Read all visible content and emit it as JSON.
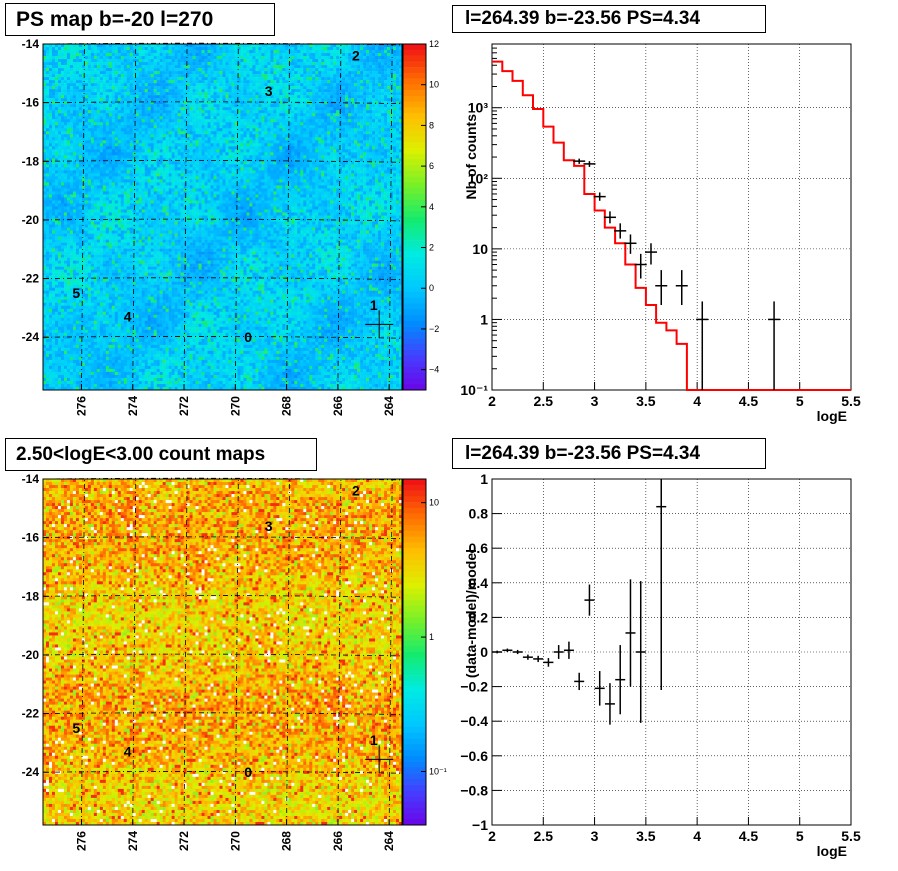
{
  "titles": {
    "ps_map": "PS map b=-20 l=270",
    "spectrum": "l=264.39 b=-23.56 PS=4.34",
    "count_maps": "2.50<logE<3.00 count maps",
    "residuals": "l=264.39 b=-23.56 PS=4.34"
  },
  "colors": {
    "model_line": "#ff0000",
    "data_marker": "#000000",
    "grid": "#000000"
  },
  "chart_data": [
    {
      "type": "heatmap",
      "name": "PS map",
      "x_ticks": [
        "276",
        "274",
        "272",
        "270",
        "268",
        "266",
        "264"
      ],
      "y_ticks": [
        "-14",
        "-16",
        "-18",
        "-20",
        "-22",
        "-24"
      ],
      "xlim": [
        277.5,
        263.5
      ],
      "ylim": [
        -25.8,
        -14
      ],
      "colorbar": {
        "range": [
          -5,
          12
        ],
        "ticks": [
          "12",
          "10",
          "8",
          "6",
          "4",
          "2",
          "0",
          "−2",
          "−4"
        ],
        "tick_values": [
          12,
          10,
          8,
          6,
          4,
          2,
          0,
          -2,
          -4
        ]
      },
      "sources": [
        {
          "label": "0",
          "l": 269.5,
          "b": -24.0
        },
        {
          "label": "1",
          "l": 264.6,
          "b": -22.9
        },
        {
          "label": "2",
          "l": 265.3,
          "b": -14.4
        },
        {
          "label": "3",
          "l": 268.7,
          "b": -15.6
        },
        {
          "label": "4",
          "l": 274.2,
          "b": -23.3
        },
        {
          "label": "5",
          "l": 276.2,
          "b": -22.5
        }
      ],
      "marker": {
        "l": 264.39,
        "b": -23.56
      }
    },
    {
      "type": "line",
      "name": "spectrum",
      "xlabel": "logE",
      "ylabel": "Nb of counts",
      "xlim": [
        2,
        5.5
      ],
      "ylim": [
        0.1,
        8000
      ],
      "yscale": "log",
      "x_ticks": [
        "2",
        "2.5",
        "3",
        "3.5",
        "4",
        "4.5",
        "5",
        "5.5"
      ],
      "y_ticks": [
        "10⁻¹",
        "1",
        "10",
        "10²",
        "10³"
      ],
      "grid": true,
      "model_step": {
        "edges": [
          2.0,
          2.1,
          2.2,
          2.3,
          2.4,
          2.5,
          2.6,
          2.7,
          2.8,
          2.9,
          3.0,
          3.1,
          3.2,
          3.3,
          3.4,
          3.5,
          3.6,
          3.7,
          3.8,
          3.9,
          4.0,
          4.1,
          5.5
        ],
        "values": [
          4500,
          3300,
          2400,
          1500,
          960,
          540,
          320,
          180,
          150,
          60,
          35,
          20,
          12,
          6,
          2.8,
          1.6,
          0.9,
          0.7,
          0.45,
          0.1,
          0.1,
          0.1
        ]
      },
      "data_points": [
        {
          "x": 2.85,
          "y": 175,
          "ylo": 160,
          "yhi": 190
        },
        {
          "x": 2.95,
          "y": 160,
          "ylo": 145,
          "yhi": 175
        },
        {
          "x": 3.05,
          "y": 55,
          "ylo": 48,
          "yhi": 63
        },
        {
          "x": 3.15,
          "y": 28,
          "ylo": 23,
          "yhi": 34
        },
        {
          "x": 3.25,
          "y": 18,
          "ylo": 14,
          "yhi": 23
        },
        {
          "x": 3.35,
          "y": 12,
          "ylo": 8.5,
          "yhi": 16
        },
        {
          "x": 3.45,
          "y": 6,
          "ylo": 3.8,
          "yhi": 8.5
        },
        {
          "x": 3.55,
          "y": 9,
          "ylo": 6,
          "yhi": 12
        },
        {
          "x": 3.65,
          "y": 3,
          "ylo": 1.6,
          "yhi": 5
        },
        {
          "x": 3.85,
          "y": 3,
          "ylo": 1.6,
          "yhi": 5
        },
        {
          "x": 4.05,
          "y": 1,
          "ylo": 0.1,
          "yhi": 1.8
        },
        {
          "x": 4.75,
          "y": 1,
          "ylo": 0.1,
          "yhi": 1.8
        }
      ]
    },
    {
      "type": "heatmap",
      "name": "count maps",
      "x_ticks": [
        "276",
        "274",
        "272",
        "270",
        "268",
        "266",
        "264"
      ],
      "y_ticks": [
        "-14",
        "-16",
        "-18",
        "-20",
        "-22",
        "-24"
      ],
      "xlim": [
        277.5,
        263.5
      ],
      "ylim": [
        -25.8,
        -14
      ],
      "colorbar": {
        "scale": "log",
        "range": [
          0.04,
          15
        ],
        "ticks": [
          "10",
          "1",
          "10⁻¹"
        ],
        "tick_values": [
          10,
          1,
          0.1
        ]
      },
      "sources": [
        {
          "label": "0",
          "l": 269.5,
          "b": -24.0
        },
        {
          "label": "1",
          "l": 264.6,
          "b": -22.9
        },
        {
          "label": "2",
          "l": 265.3,
          "b": -14.4
        },
        {
          "label": "3",
          "l": 268.7,
          "b": -15.6
        },
        {
          "label": "4",
          "l": 274.2,
          "b": -23.3
        },
        {
          "label": "5",
          "l": 276.2,
          "b": -22.5
        }
      ],
      "marker": {
        "l": 264.39,
        "b": -23.56
      }
    },
    {
      "type": "scatter",
      "name": "residuals",
      "xlabel": "logE",
      "ylabel": "(data-model)/model",
      "xlim": [
        2,
        5.5
      ],
      "ylim": [
        -1,
        1
      ],
      "x_ticks": [
        "2",
        "2.5",
        "3",
        "3.5",
        "4",
        "4.5",
        "5",
        "5.5"
      ],
      "y_ticks": [
        "1",
        "0.8",
        "0.6",
        "0.4",
        "0.2",
        "0",
        "−0.2",
        "−0.4",
        "−0.6",
        "−0.8",
        "−1"
      ],
      "grid": true,
      "data_points": [
        {
          "x": 2.05,
          "y": 0.0,
          "err": 0.008
        },
        {
          "x": 2.15,
          "y": 0.01,
          "err": 0.01
        },
        {
          "x": 2.25,
          "y": 0.0,
          "err": 0.012
        },
        {
          "x": 2.35,
          "y": -0.03,
          "err": 0.015
        },
        {
          "x": 2.45,
          "y": -0.04,
          "err": 0.018
        },
        {
          "x": 2.55,
          "y": -0.06,
          "err": 0.025
        },
        {
          "x": 2.65,
          "y": 0.0,
          "err": 0.04
        },
        {
          "x": 2.75,
          "y": 0.01,
          "err": 0.05
        },
        {
          "x": 2.85,
          "y": -0.17,
          "err": 0.05
        },
        {
          "x": 2.95,
          "y": 0.3,
          "err": 0.09
        },
        {
          "x": 3.05,
          "y": -0.21,
          "err": 0.1
        },
        {
          "x": 3.15,
          "y": -0.3,
          "err": 0.12
        },
        {
          "x": 3.25,
          "y": -0.16,
          "err": 0.2
        },
        {
          "x": 3.35,
          "y": 0.11,
          "err": 0.31
        },
        {
          "x": 3.45,
          "y": 0.0,
          "err": 0.41
        },
        {
          "x": 3.65,
          "y": 0.84,
          "err": 1.06,
          "yhi_clip": 1.0
        }
      ]
    }
  ]
}
